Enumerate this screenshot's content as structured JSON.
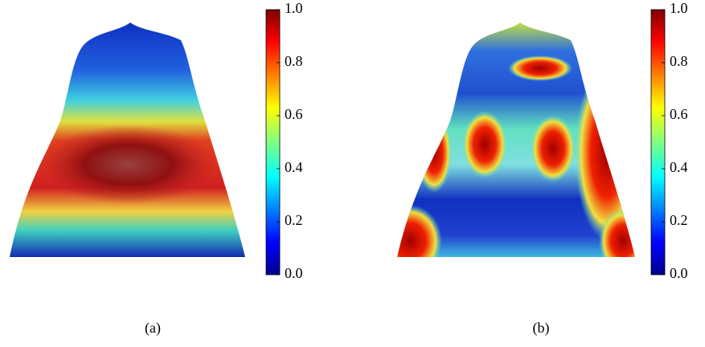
{
  "figure": {
    "panels": [
      {
        "caption": "(a)",
        "colorbar": {
          "lim": [
            0,
            1
          ],
          "ticks": [
            {
              "value": 0,
              "label": "0.0"
            },
            0.2,
            0.4,
            0.6,
            0.8,
            {
              "value": 1,
              "label": "1.0"
            }
          ]
        }
      },
      {
        "caption": "(b)",
        "colorbar": {
          "lim": [
            0,
            1
          ],
          "ticks": [
            {
              "value": 0,
              "label": "0.0"
            },
            0.2,
            0.4,
            0.6,
            0.8,
            {
              "value": 1,
              "label": "1.0"
            }
          ]
        }
      }
    ]
  }
}
